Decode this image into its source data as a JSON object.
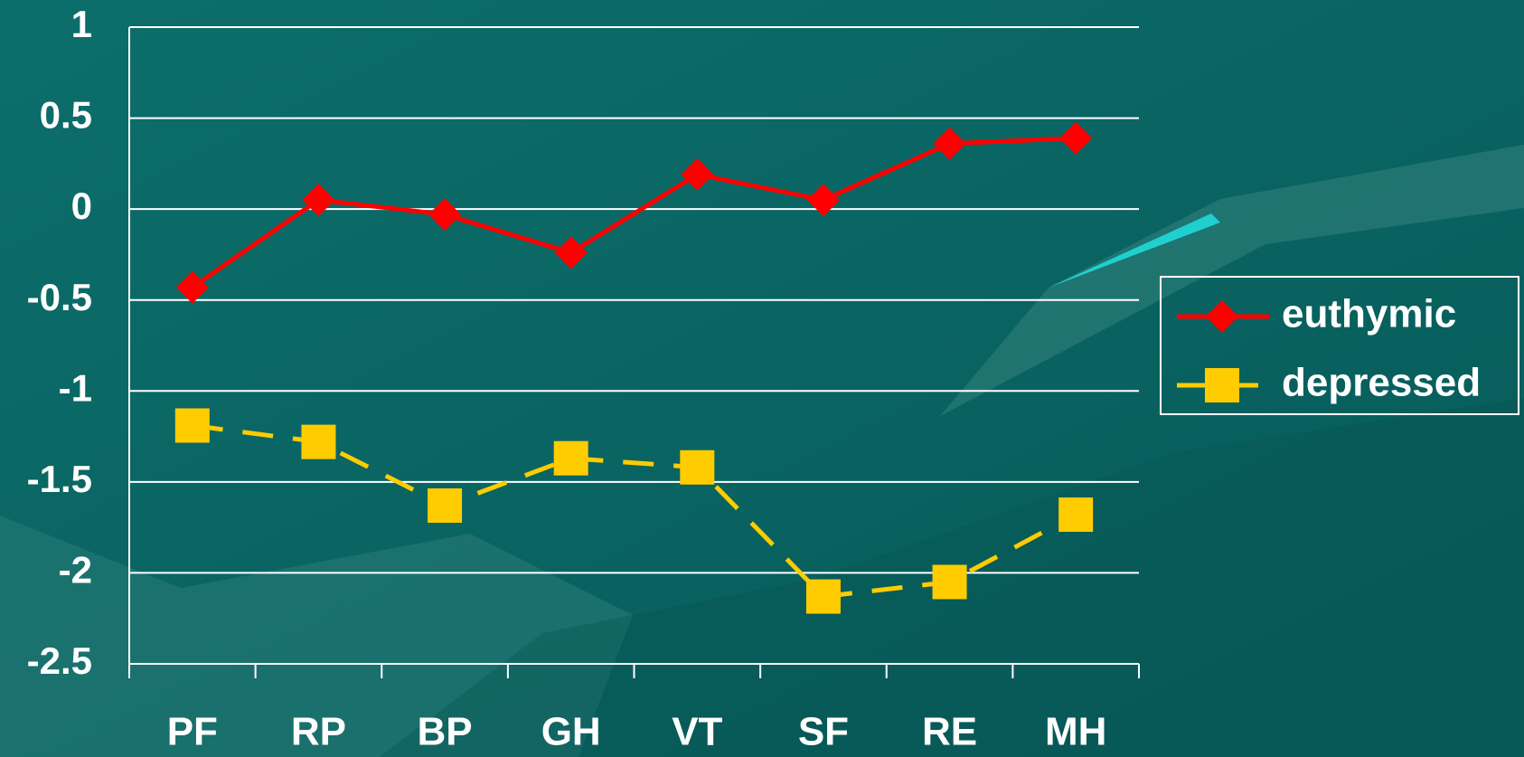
{
  "chart_data": {
    "type": "line",
    "categories": [
      "PF",
      "RP",
      "BP",
      "GH",
      "VT",
      "SF",
      "RE",
      "MH"
    ],
    "series": [
      {
        "name": "euthymic",
        "color": "#ff0000",
        "marker": "diamond",
        "dashed": false,
        "values": [
          -0.43,
          0.05,
          -0.03,
          -0.24,
          0.19,
          0.05,
          0.36,
          0.39
        ]
      },
      {
        "name": "depressed",
        "color": "#ffcc00",
        "marker": "square",
        "dashed": true,
        "values": [
          -1.19,
          -1.28,
          -1.63,
          -1.37,
          -1.42,
          -2.13,
          -2.05,
          -1.68
        ]
      }
    ],
    "ylim": [
      -2.5,
      1
    ],
    "yticks": [
      -2.5,
      -2,
      -1.5,
      -1,
      -0.5,
      0,
      0.5,
      1
    ],
    "grid": true,
    "legend": "right"
  }
}
